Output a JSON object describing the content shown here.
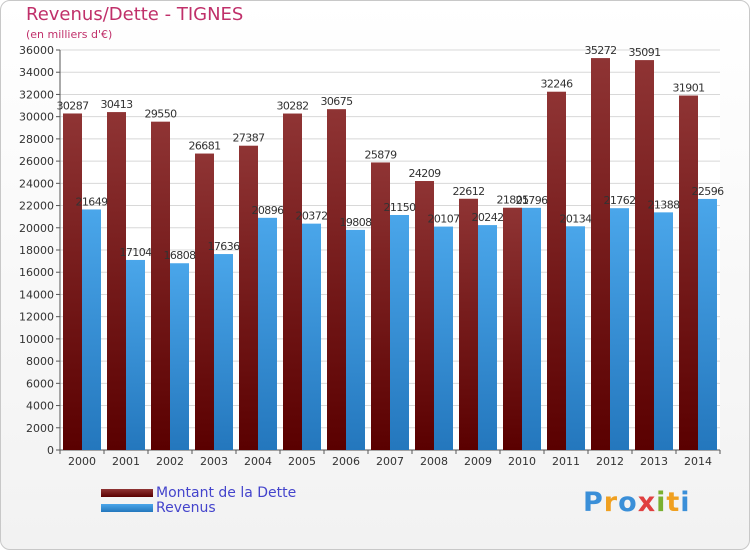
{
  "title": "Revenus/Dette - TIGNES",
  "subtitle": "(en milliers d'€)",
  "logo_letters": [
    {
      "ch": "P",
      "color": "#3a8fd8"
    },
    {
      "ch": "r",
      "color": "#f0a020"
    },
    {
      "ch": "o",
      "color": "#3a8fd8"
    },
    {
      "ch": "x",
      "color": "#e04040"
    },
    {
      "ch": "i",
      "color": "#7ab030"
    },
    {
      "ch": "t",
      "color": "#f0a020"
    },
    {
      "ch": "i",
      "color": "#3a8fd8"
    }
  ],
  "chart_data": {
    "type": "bar",
    "categories": [
      "2000",
      "2001",
      "2002",
      "2003",
      "2004",
      "2005",
      "2006",
      "2007",
      "2008",
      "2009",
      "2010",
      "2011",
      "2012",
      "2013",
      "2014"
    ],
    "series": [
      {
        "name": "Montant de la Dette",
        "color": "#8b2a2a",
        "values": [
          30287,
          30413,
          29550,
          26681,
          27387,
          30282,
          30675,
          25879,
          24209,
          22612,
          21805,
          32246,
          35272,
          35091,
          31901
        ]
      },
      {
        "name": "Revenus",
        "color": "#3a9ae0",
        "values": [
          21649,
          17104,
          16808,
          17636,
          20896,
          20372,
          19808,
          21150,
          20107,
          20242,
          21796,
          20134,
          21762,
          21388,
          22596
        ]
      }
    ],
    "ylim": [
      0,
      36000
    ],
    "yticks": [
      0,
      2000,
      4000,
      6000,
      8000,
      10000,
      12000,
      14000,
      16000,
      18000,
      20000,
      22000,
      24000,
      26000,
      28000,
      30000,
      32000,
      34000,
      36000
    ],
    "grid": true,
    "legend": "bottom-left"
  }
}
